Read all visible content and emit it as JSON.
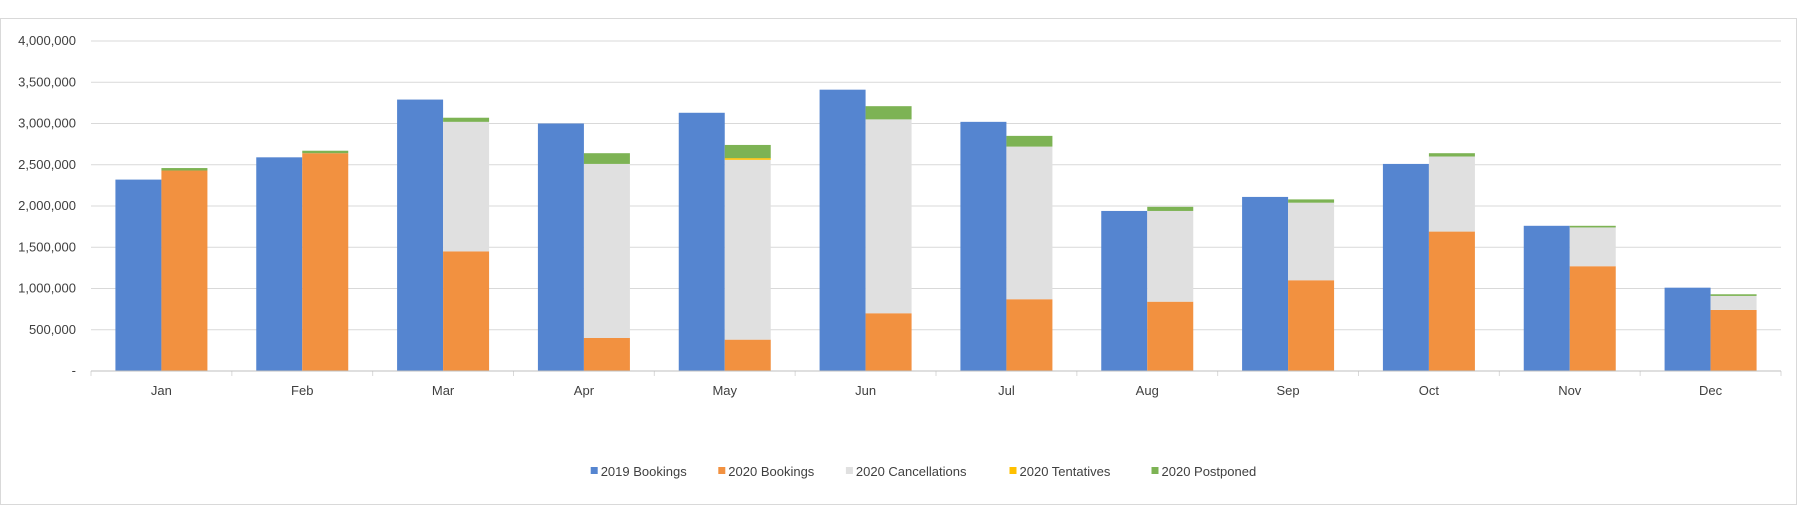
{
  "chart_data": {
    "type": "bar",
    "stacked_second_group": true,
    "categories": [
      "Jan",
      "Feb",
      "Mar",
      "Apr",
      "May",
      "Jun",
      "Jul",
      "Aug",
      "Sep",
      "Oct",
      "Nov",
      "Dec"
    ],
    "ylim": [
      0,
      4000000
    ],
    "y_ticks": [
      0,
      500000,
      1000000,
      1500000,
      2000000,
      2500000,
      3000000,
      3500000,
      4000000
    ],
    "y_tick_labels": [
      "-",
      "500,000",
      "1,000,000",
      "1,500,000",
      "2,000,000",
      "2,500,000",
      "3,000,000",
      "3,500,000",
      "4,000,000"
    ],
    "grid": true,
    "legend_position": "bottom",
    "series": [
      {
        "name": "2019 Bookings",
        "color": "#5585d0",
        "stack": "2019",
        "values": [
          2320000,
          2590000,
          3290000,
          3000000,
          3130000,
          3410000,
          3020000,
          1940000,
          2110000,
          2510000,
          1760000,
          1010000
        ]
      },
      {
        "name": "2020 Bookings",
        "color": "#f29140",
        "stack": "2020",
        "values": [
          2430000,
          2640000,
          1450000,
          400000,
          380000,
          700000,
          870000,
          840000,
          1100000,
          1690000,
          1270000,
          740000
        ]
      },
      {
        "name": "2020 Cancellations",
        "color": "#e0e0e0",
        "stack": "2020",
        "values": [
          0,
          0,
          1570000,
          2110000,
          2180000,
          2350000,
          1850000,
          1100000,
          940000,
          910000,
          470000,
          170000
        ]
      },
      {
        "name": "2020 Tentatives",
        "color": "#ffc000",
        "stack": "2020",
        "values": [
          0,
          0,
          0,
          0,
          20000,
          0,
          0,
          0,
          0,
          0,
          0,
          0
        ]
      },
      {
        "name": "2020 Postponed",
        "color": "#7db354",
        "stack": "2020",
        "values": [
          30000,
          30000,
          50000,
          130000,
          160000,
          160000,
          130000,
          50000,
          40000,
          40000,
          20000,
          20000
        ]
      }
    ]
  }
}
